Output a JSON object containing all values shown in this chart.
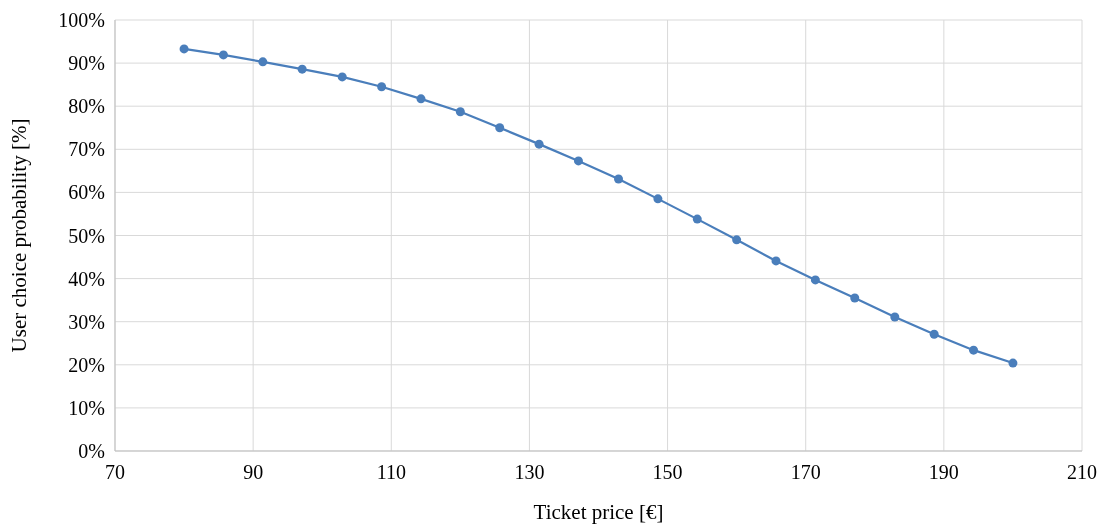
{
  "chart_data": {
    "type": "line",
    "xlabel": "Ticket price [€]",
    "ylabel": "User choice probability [%]",
    "x": [
      80,
      85.7,
      91.4,
      97.1,
      102.9,
      108.6,
      114.3,
      120,
      125.7,
      131.4,
      137.1,
      142.9,
      148.6,
      154.3,
      160,
      165.7,
      171.4,
      177.1,
      182.9,
      188.6,
      194.3,
      200
    ],
    "series": [
      {
        "color": "#4a7ebb",
        "values": [
          93.3,
          91.9,
          90.3,
          88.6,
          86.8,
          84.5,
          81.7,
          78.7,
          75.0,
          71.2,
          67.3,
          63.1,
          58.5,
          53.8,
          49.0,
          44.1,
          39.7,
          35.5,
          31.1,
          27.1,
          23.4,
          20.4
        ]
      }
    ],
    "xlim": [
      70,
      210
    ],
    "xticks": [
      70,
      90,
      110,
      130,
      150,
      170,
      190,
      210
    ],
    "ylim": [
      0,
      100
    ],
    "yticks": [
      {
        "value": 0,
        "label": "0%"
      },
      {
        "value": 10,
        "label": "10%"
      },
      {
        "value": 20,
        "label": "20%"
      },
      {
        "value": 30,
        "label": "30%"
      },
      {
        "value": 40,
        "label": "40%"
      },
      {
        "value": 50,
        "label": "50%"
      },
      {
        "value": 60,
        "label": "60%"
      },
      {
        "value": 70,
        "label": "70%"
      },
      {
        "value": 80,
        "label": "80%"
      },
      {
        "value": 90,
        "label": "90%"
      },
      {
        "value": 100,
        "label": "100%"
      }
    ],
    "grid": true,
    "marker": "circle",
    "line_style": "solid"
  }
}
